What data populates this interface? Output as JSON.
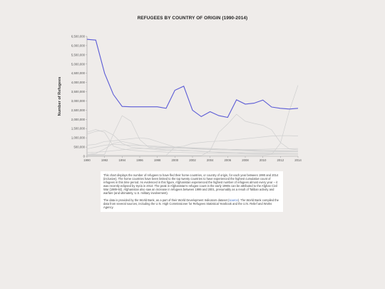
{
  "chart_data": {
    "type": "line",
    "title": "REFUGEES BY COUNTRY OF ORIGIN (1990-2014)",
    "xlabel": "",
    "ylabel": "Number of Refugees",
    "xlim": [
      1990,
      2014
    ],
    "ylim": [
      0,
      6500000
    ],
    "x_ticks": [
      1990,
      1992,
      1994,
      1996,
      1998,
      2000,
      2002,
      2004,
      2006,
      2008,
      2010,
      2012,
      2014
    ],
    "y_ticks": [
      0,
      500000,
      1000000,
      1500000,
      2000000,
      2500000,
      3000000,
      3500000,
      4000000,
      4500000,
      5000000,
      5500000,
      6000000,
      6500000
    ],
    "y_tick_labels": [
      "0",
      "500,000",
      "1,000,000",
      "1,500,000",
      "2,000,000",
      "2,500,000",
      "3,000,000",
      "3,500,000",
      "4,000,000",
      "4,500,000",
      "5,000,000",
      "5,500,000",
      "6,000,000",
      "6,500,000"
    ],
    "grid": false,
    "highlight_color": "#5b5bd6",
    "other_color": "#cfcfcf",
    "x": [
      1990,
      1991,
      1992,
      1993,
      1994,
      1995,
      1996,
      1997,
      1998,
      1999,
      2000,
      2001,
      2002,
      2003,
      2004,
      2005,
      2006,
      2007,
      2008,
      2009,
      2010,
      2011,
      2012,
      2013,
      2014
    ],
    "series": [
      {
        "highlight": true,
        "values": [
          6340000,
          6300000,
          4500000,
          3350000,
          2700000,
          2680000,
          2680000,
          2680000,
          2680000,
          2600000,
          3580000,
          3800000,
          2500000,
          2150000,
          2420000,
          2200000,
          2110000,
          3060000,
          2830000,
          2880000,
          3050000,
          2670000,
          2600000,
          2560000,
          2600000
        ]
      },
      {
        "highlight": false,
        "values": [
          1200000,
          1350000,
          1400000,
          1150000,
          700000,
          500000,
          450000,
          400000,
          350000,
          330000,
          330000,
          340000,
          300000,
          270000,
          240000,
          230000,
          220000,
          210000,
          200000,
          200000,
          190000,
          180000,
          170000,
          160000,
          150000
        ]
      },
      {
        "highlight": false,
        "values": [
          1300000,
          1450000,
          1300000,
          550000,
          400000,
          330000,
          290000,
          260000,
          250000,
          230000,
          220000,
          200000,
          190000,
          180000,
          170000,
          160000,
          150000,
          140000,
          130000,
          120000,
          110000,
          100000,
          90000,
          85000,
          80000
        ]
      },
      {
        "highlight": false,
        "values": [
          100000,
          100000,
          100000,
          1200000,
          2200000,
          1900000,
          900000,
          500000,
          400000,
          350000,
          350000,
          300000,
          300000,
          250000,
          250000,
          200000,
          200000,
          200000,
          150000,
          150000,
          150000,
          150000,
          150000,
          150000,
          150000
        ]
      },
      {
        "highlight": false,
        "values": [
          50000,
          50000,
          50000,
          50000,
          50000,
          50000,
          50000,
          50000,
          50000,
          50000,
          50000,
          50000,
          50000,
          50000,
          50000,
          50000,
          50000,
          50000,
          50000,
          50000,
          50000,
          100000,
          700000,
          2450000,
          3850000
        ]
      },
      {
        "highlight": false,
        "values": [
          30000,
          30000,
          30000,
          30000,
          30000,
          30000,
          30000,
          30000,
          30000,
          30000,
          30000,
          30000,
          30000,
          30000,
          300000,
          1300000,
          1750000,
          2280000,
          1900000,
          1780000,
          1680000,
          1430000,
          750000,
          400000,
          350000
        ]
      },
      {
        "highlight": false,
        "values": [
          50000,
          50000,
          50000,
          50000,
          50000,
          50000,
          50000,
          50000,
          50000,
          50000,
          500000,
          550000,
          700000,
          750000,
          800000,
          820000,
          850000,
          900000,
          950000,
          1000000,
          1050000,
          1100000,
          1120000,
          1120000,
          1100000
        ]
      },
      {
        "highlight": false,
        "values": [
          600000,
          650000,
          800000,
          830000,
          900000,
          950000,
          1000000,
          950000,
          800000,
          650000,
          500000,
          450000,
          400000,
          380000,
          360000,
          350000,
          340000,
          330000,
          320000,
          310000,
          300000,
          290000,
          280000,
          270000,
          260000
        ]
      },
      {
        "highlight": false,
        "values": [
          200000,
          220000,
          250000,
          300000,
          350000,
          400000,
          420000,
          430000,
          440000,
          450000,
          450000,
          450000,
          440000,
          430000,
          420000,
          400000,
          380000,
          370000,
          360000,
          370000,
          380000,
          390000,
          400000,
          410000,
          420000
        ]
      },
      {
        "highlight": false,
        "values": [
          100000,
          150000,
          400000,
          700000,
          800000,
          700000,
          600000,
          550000,
          500000,
          480000,
          460000,
          440000,
          420000,
          400000,
          380000,
          360000,
          340000,
          320000,
          300000,
          280000,
          260000,
          250000,
          250000,
          250000,
          250000
        ]
      },
      {
        "highlight": false,
        "values": [
          400000,
          500000,
          600000,
          650000,
          620000,
          600000,
          580000,
          560000,
          540000,
          520000,
          500000,
          480000,
          460000,
          440000,
          420000,
          400000,
          380000,
          360000,
          340000,
          330000,
          320000,
          310000,
          300000,
          300000,
          300000
        ]
      }
    ]
  },
  "description": {
    "paragraph1": "This chart displays the number of refugees to have fled their home countries, or country of origin, for each year between 1990 and 2014 (inclusive). The home countries have been limited to the top twenty countries to have experienced the highest cumulative count of refugees in this time period. As evidenced in this figure, Afghanistan experienced the highest number of refugees almost every year -- it was recently eclipsed by Syria in 2014. The peak in Afghanistan's refugee count in the early 1990s can be attributed to the Afghan Civil War (1989-92). Afghanistan also saw an increase in refugees between 1999 and 2001, presumably as a result of Taliban activity and warfare (and ultimately, U.S. military involvement).",
    "paragraph2_before": "The data is provided by the World Bank, as a part of their World Development Indicators dataset (",
    "source_link": "source",
    "paragraph2_after": "). The World Bank compiled the data from several sources, including the U.N. High Commissioner for Refugees Statistical Yearbook and the U.N. Relief and Works Agency."
  }
}
